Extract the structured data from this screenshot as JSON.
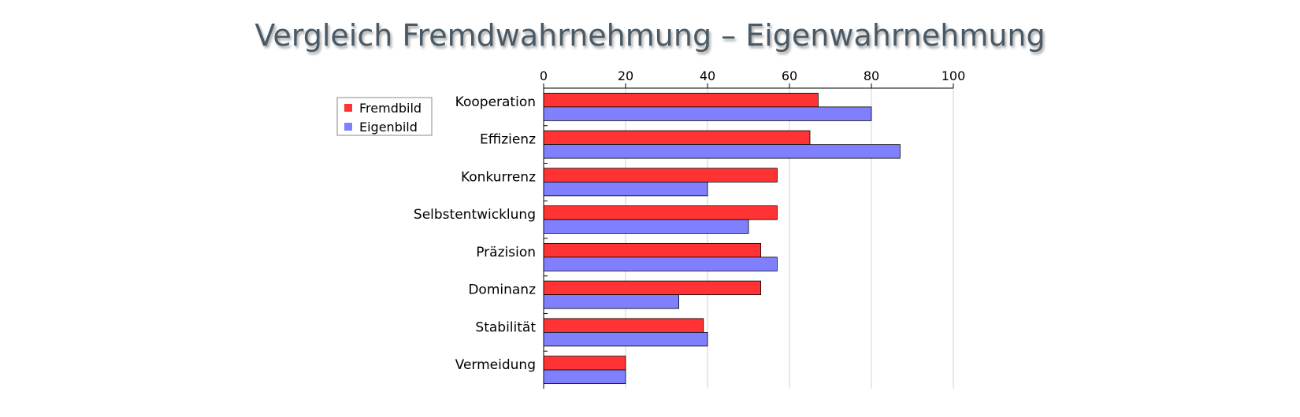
{
  "chart_data": {
    "type": "bar",
    "orientation": "horizontal",
    "title": "Vergleich Fremdwahrnehmung – Eigenwahrnehmung",
    "xlabel": "",
    "ylabel": "",
    "xlim": [
      0,
      100
    ],
    "x_ticks": [
      0,
      20,
      40,
      60,
      80,
      100
    ],
    "x_axis_position": "top",
    "grid": true,
    "legend_position": "top-left",
    "categories": [
      "Kooperation",
      "Effizienz",
      "Konkurrenz",
      "Selbstentwicklung",
      "Präzision",
      "Dominanz",
      "Stabilität",
      "Vermeidung"
    ],
    "series": [
      {
        "name": "Fremdbild",
        "color": "#ff3333",
        "values": [
          67,
          65,
          57,
          57,
          53,
          53,
          39,
          20
        ]
      },
      {
        "name": "Eigenbild",
        "color": "#8080ff",
        "values": [
          80,
          87,
          40,
          50,
          57,
          33,
          40,
          20
        ]
      }
    ]
  }
}
